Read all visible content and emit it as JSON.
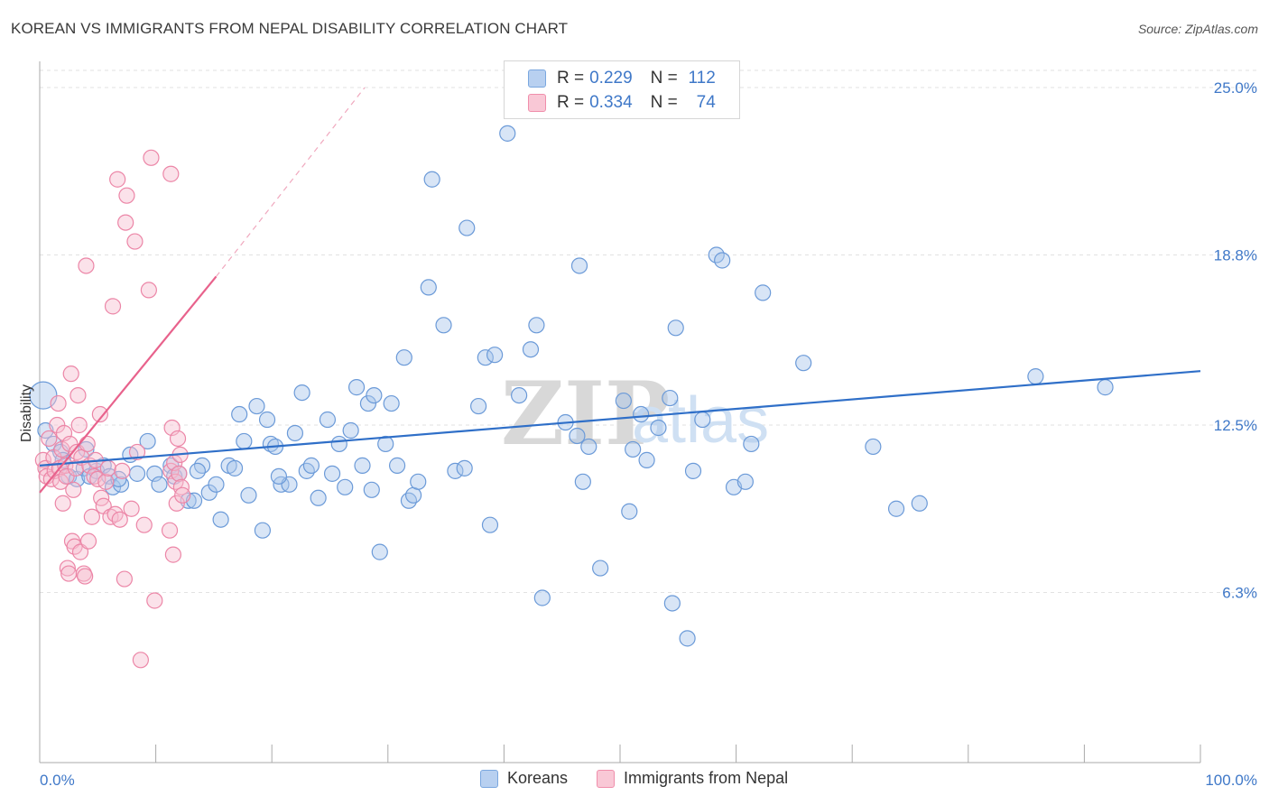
{
  "title": "KOREAN VS IMMIGRANTS FROM NEPAL DISABILITY CORRELATION CHART",
  "source": "Source: ZipAtlas.com",
  "watermark": {
    "zip": "ZIP",
    "atlas": "atlas"
  },
  "legend": {
    "rows": [
      {
        "r_label": "R =",
        "r_value": "0.229",
        "n_label": "N =",
        "n_value": "112"
      },
      {
        "r_label": "R =",
        "r_value": "0.334",
        "n_label": "N =",
        "n_value": "74"
      }
    ]
  },
  "bottom_legend": {
    "series1": "Koreans",
    "series2": "Immigrants from Nepal"
  },
  "colors": {
    "blue": "#7aa7df",
    "blue_line": "#2f6fc8",
    "pink": "#f08eab",
    "pink_line": "#e8628c"
  },
  "chart_data": {
    "type": "scatter",
    "title": "KOREAN VS IMMIGRANTS FROM NEPAL DISABILITY CORRELATION CHART",
    "xlabel": "",
    "ylabel": "Disability",
    "xlim": [
      0,
      100
    ],
    "ylim": [
      0,
      25
    ],
    "x_tick_labels": [
      "0.0%",
      "100.0%"
    ],
    "y_ticks": [
      6.3,
      12.5,
      18.8,
      25.0
    ],
    "y_tick_labels": [
      "6.3%",
      "12.5%",
      "18.8%",
      "25.0%"
    ],
    "grid": "horizontal dashed",
    "legend_position": "top-center",
    "series": [
      {
        "name": "Koreans",
        "r": 0.229,
        "n": 112,
        "trend": {
          "x0": 0,
          "y0": 11.0,
          "x1": 100,
          "y1": 14.5
        },
        "points": [
          [
            0.3,
            13.6
          ],
          [
            0.5,
            12.3
          ],
          [
            1.2,
            11.8
          ],
          [
            1.8,
            11.5
          ],
          [
            2.5,
            10.6
          ],
          [
            3.2,
            10.5
          ],
          [
            3.8,
            10.9
          ],
          [
            4.3,
            10.6
          ],
          [
            4.9,
            10.8
          ],
          [
            5.5,
            11.0
          ],
          [
            6.0,
            10.6
          ],
          [
            6.3,
            10.2
          ],
          [
            7.0,
            10.3
          ],
          [
            7.8,
            11.4
          ],
          [
            8.4,
            10.7
          ],
          [
            9.3,
            11.9
          ],
          [
            9.9,
            10.7
          ],
          [
            10.3,
            10.3
          ],
          [
            11.3,
            11.0
          ],
          [
            11.6,
            10.6
          ],
          [
            12.0,
            10.7
          ],
          [
            12.8,
            9.7
          ],
          [
            13.3,
            9.7
          ],
          [
            14.0,
            11.0
          ],
          [
            14.6,
            10.0
          ],
          [
            15.2,
            10.3
          ],
          [
            15.6,
            9.0
          ],
          [
            16.3,
            11.0
          ],
          [
            16.8,
            10.9
          ],
          [
            17.2,
            12.9
          ],
          [
            17.6,
            11.9
          ],
          [
            18.0,
            9.9
          ],
          [
            18.7,
            13.2
          ],
          [
            19.2,
            8.6
          ],
          [
            19.6,
            12.7
          ],
          [
            19.9,
            11.8
          ],
          [
            20.3,
            11.7
          ],
          [
            20.8,
            10.3
          ],
          [
            21.5,
            10.3
          ],
          [
            22.0,
            12.2
          ],
          [
            22.6,
            13.7
          ],
          [
            23.0,
            10.8
          ],
          [
            23.4,
            11.0
          ],
          [
            24.0,
            9.8
          ],
          [
            24.8,
            12.7
          ],
          [
            25.2,
            10.7
          ],
          [
            25.8,
            11.8
          ],
          [
            26.3,
            10.2
          ],
          [
            26.8,
            12.3
          ],
          [
            27.3,
            13.9
          ],
          [
            27.8,
            11.0
          ],
          [
            28.3,
            13.3
          ],
          [
            28.8,
            13.6
          ],
          [
            29.3,
            7.8
          ],
          [
            29.8,
            11.8
          ],
          [
            30.3,
            13.3
          ],
          [
            30.8,
            11.0
          ],
          [
            31.4,
            15.0
          ],
          [
            31.8,
            9.7
          ],
          [
            32.2,
            9.9
          ],
          [
            32.6,
            10.4
          ],
          [
            33.5,
            17.6
          ],
          [
            33.8,
            21.6
          ],
          [
            34.8,
            16.2
          ],
          [
            35.8,
            10.8
          ],
          [
            36.6,
            10.9
          ],
          [
            36.8,
            19.8
          ],
          [
            37.8,
            13.2
          ],
          [
            38.4,
            15.0
          ],
          [
            38.8,
            8.8
          ],
          [
            39.2,
            15.1
          ],
          [
            40.3,
            23.3
          ],
          [
            41.3,
            13.6
          ],
          [
            42.3,
            15.3
          ],
          [
            42.8,
            16.2
          ],
          [
            43.3,
            6.1
          ],
          [
            45.3,
            12.6
          ],
          [
            46.3,
            12.1
          ],
          [
            46.5,
            18.4
          ],
          [
            46.8,
            10.4
          ],
          [
            47.3,
            11.7
          ],
          [
            48.3,
            7.2
          ],
          [
            50.3,
            13.4
          ],
          [
            50.8,
            9.3
          ],
          [
            51.1,
            11.6
          ],
          [
            51.8,
            12.9
          ],
          [
            52.3,
            11.2
          ],
          [
            53.3,
            12.4
          ],
          [
            54.3,
            13.5
          ],
          [
            54.5,
            5.9
          ],
          [
            54.8,
            16.1
          ],
          [
            55.8,
            4.6
          ],
          [
            56.3,
            10.8
          ],
          [
            57.1,
            12.7
          ],
          [
            58.3,
            18.8
          ],
          [
            58.8,
            18.6
          ],
          [
            59.8,
            10.2
          ],
          [
            60.8,
            10.4
          ],
          [
            61.3,
            11.8
          ],
          [
            62.3,
            17.4
          ],
          [
            65.8,
            14.8
          ],
          [
            71.8,
            11.7
          ],
          [
            73.8,
            9.4
          ],
          [
            75.8,
            9.6
          ],
          [
            85.8,
            14.3
          ],
          [
            91.8,
            13.9
          ],
          [
            2.0,
            11.2
          ],
          [
            4.0,
            11.6
          ],
          [
            6.8,
            10.5
          ],
          [
            13.6,
            10.8
          ],
          [
            20.6,
            10.6
          ],
          [
            28.6,
            10.1
          ]
        ]
      },
      {
        "name": "Immigrants from Nepal",
        "r": 0.334,
        "n": 74,
        "trend": {
          "x0": 0,
          "y0": 10.0,
          "x1": 15.2,
          "y1": 18.0
        },
        "trend_extension": {
          "x0": 15.2,
          "y0": 18.0,
          "x1": 28.0,
          "y1": 25.0
        },
        "points": [
          [
            0.3,
            11.2
          ],
          [
            0.5,
            10.9
          ],
          [
            0.6,
            10.6
          ],
          [
            0.8,
            12.0
          ],
          [
            1.0,
            10.5
          ],
          [
            1.2,
            11.3
          ],
          [
            1.3,
            10.8
          ],
          [
            1.5,
            12.5
          ],
          [
            1.6,
            13.3
          ],
          [
            1.7,
            10.9
          ],
          [
            1.8,
            10.4
          ],
          [
            1.9,
            11.6
          ],
          [
            2.0,
            9.6
          ],
          [
            2.1,
            12.2
          ],
          [
            2.2,
            11.0
          ],
          [
            2.3,
            10.6
          ],
          [
            2.4,
            7.2
          ],
          [
            2.5,
            7.0
          ],
          [
            2.6,
            11.8
          ],
          [
            2.7,
            14.4
          ],
          [
            2.8,
            8.2
          ],
          [
            2.9,
            10.1
          ],
          [
            3.0,
            8.0
          ],
          [
            3.1,
            10.9
          ],
          [
            3.2,
            11.5
          ],
          [
            3.3,
            13.6
          ],
          [
            3.4,
            12.5
          ],
          [
            3.5,
            7.8
          ],
          [
            3.6,
            11.3
          ],
          [
            3.8,
            7.0
          ],
          [
            3.9,
            6.9
          ],
          [
            4.0,
            18.4
          ],
          [
            4.1,
            11.8
          ],
          [
            4.2,
            8.2
          ],
          [
            4.3,
            11.0
          ],
          [
            4.5,
            9.1
          ],
          [
            4.7,
            10.6
          ],
          [
            4.8,
            11.2
          ],
          [
            5.0,
            10.5
          ],
          [
            5.2,
            12.9
          ],
          [
            5.3,
            9.8
          ],
          [
            5.5,
            9.5
          ],
          [
            5.7,
            10.4
          ],
          [
            5.9,
            10.9
          ],
          [
            6.1,
            9.1
          ],
          [
            6.3,
            16.9
          ],
          [
            6.5,
            9.2
          ],
          [
            6.7,
            21.6
          ],
          [
            6.9,
            9.0
          ],
          [
            7.1,
            10.8
          ],
          [
            7.3,
            6.8
          ],
          [
            7.4,
            20.0
          ],
          [
            7.5,
            21.0
          ],
          [
            7.9,
            9.4
          ],
          [
            8.2,
            19.3
          ],
          [
            8.4,
            11.5
          ],
          [
            8.7,
            3.8
          ],
          [
            9.0,
            8.8
          ],
          [
            9.4,
            17.5
          ],
          [
            9.6,
            22.4
          ],
          [
            9.9,
            6.0
          ],
          [
            11.2,
            8.6
          ],
          [
            11.3,
            10.8
          ],
          [
            11.4,
            12.4
          ],
          [
            11.5,
            7.7
          ],
          [
            11.6,
            11.1
          ],
          [
            11.7,
            10.4
          ],
          [
            11.8,
            9.6
          ],
          [
            11.9,
            12.0
          ],
          [
            12.0,
            10.7
          ],
          [
            12.1,
            11.4
          ],
          [
            12.2,
            10.2
          ],
          [
            12.3,
            9.9
          ],
          [
            11.3,
            21.8
          ]
        ]
      }
    ]
  }
}
